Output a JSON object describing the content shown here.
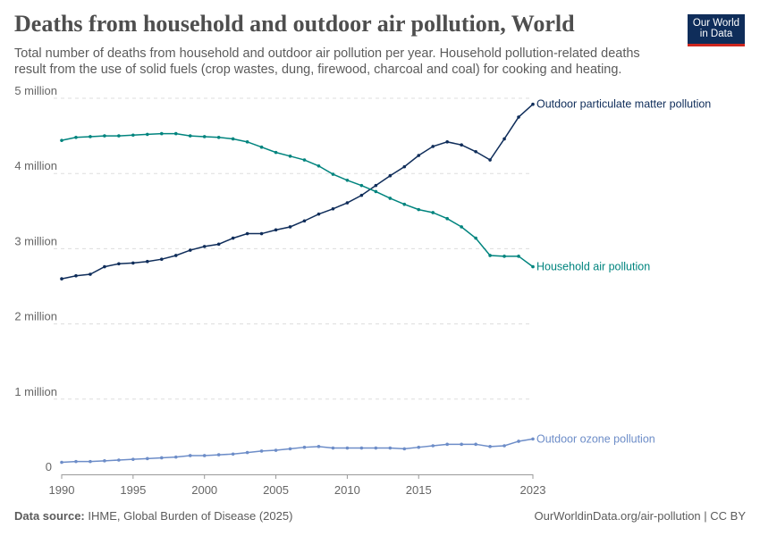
{
  "title": "Deaths from household and outdoor air pollution, World",
  "subtitle": "Total number of deaths from household and outdoor air pollution per year. Household pollution-related deaths result from the use of solid fuels (crop wastes, dung, firewood, charcoal and coal) for cooking and heating.",
  "logo": "Our World in Data",
  "footer": {
    "source_label": "Data source:",
    "source": "IHME, Global Burden of Disease (2025)",
    "url": "OurWorldinData.org/air-pollution | CC BY"
  },
  "chart_data": {
    "type": "line",
    "title": "Deaths from household and outdoor air pollution, World",
    "x": [
      1990,
      1991,
      1992,
      1993,
      1994,
      1995,
      1996,
      1997,
      1998,
      1999,
      2000,
      2001,
      2002,
      2003,
      2004,
      2005,
      2006,
      2007,
      2008,
      2009,
      2010,
      2011,
      2012,
      2013,
      2014,
      2015,
      2016,
      2017,
      2018,
      2019,
      2020,
      2021,
      2022,
      2023
    ],
    "xlim": [
      1990,
      2023
    ],
    "ylim": [
      0,
      5000000
    ],
    "xticks": [
      {
        "v": 1990,
        "label": "1990"
      },
      {
        "v": 1995,
        "label": "1995"
      },
      {
        "v": 2000,
        "label": "2000"
      },
      {
        "v": 2005,
        "label": "2005"
      },
      {
        "v": 2010,
        "label": "2010"
      },
      {
        "v": 2015,
        "label": "2015"
      },
      {
        "v": 2023,
        "label": "2023"
      }
    ],
    "yticks": [
      {
        "v": 0,
        "label": "0"
      },
      {
        "v": 1000000,
        "label": "1 million"
      },
      {
        "v": 2000000,
        "label": "2 million"
      },
      {
        "v": 3000000,
        "label": "3 million"
      },
      {
        "v": 4000000,
        "label": "4 million"
      },
      {
        "v": 5000000,
        "label": "5 million"
      }
    ],
    "grid": "horizontal dashed",
    "legend": "line-end labels",
    "series": [
      {
        "name": "Outdoor particulate matter pollution",
        "color": "#0f2d5a",
        "values": [
          2600000,
          2640000,
          2660000,
          2760000,
          2800000,
          2810000,
          2830000,
          2860000,
          2910000,
          2980000,
          3030000,
          3060000,
          3140000,
          3200000,
          3200000,
          3250000,
          3290000,
          3370000,
          3460000,
          3530000,
          3610000,
          3710000,
          3840000,
          3970000,
          4090000,
          4240000,
          4360000,
          4420000,
          4380000,
          4290000,
          4180000,
          4460000,
          4750000,
          4920000
        ]
      },
      {
        "name": "Household air pollution",
        "color": "#00847e",
        "values": [
          4440000,
          4480000,
          4490000,
          4500000,
          4500000,
          4510000,
          4520000,
          4530000,
          4530000,
          4500000,
          4490000,
          4480000,
          4460000,
          4420000,
          4350000,
          4280000,
          4230000,
          4180000,
          4100000,
          3990000,
          3910000,
          3840000,
          3760000,
          3670000,
          3590000,
          3520000,
          3480000,
          3400000,
          3290000,
          3140000,
          2910000,
          2900000,
          2900000,
          2760000
        ]
      },
      {
        "name": "Outdoor ozone pollution",
        "color": "#6d8dc8",
        "values": [
          160000,
          170000,
          170000,
          180000,
          190000,
          200000,
          210000,
          220000,
          230000,
          250000,
          250000,
          260000,
          270000,
          290000,
          310000,
          320000,
          340000,
          360000,
          370000,
          350000,
          350000,
          350000,
          350000,
          350000,
          340000,
          360000,
          380000,
          400000,
          400000,
          400000,
          370000,
          380000,
          440000,
          470000
        ]
      }
    ]
  }
}
